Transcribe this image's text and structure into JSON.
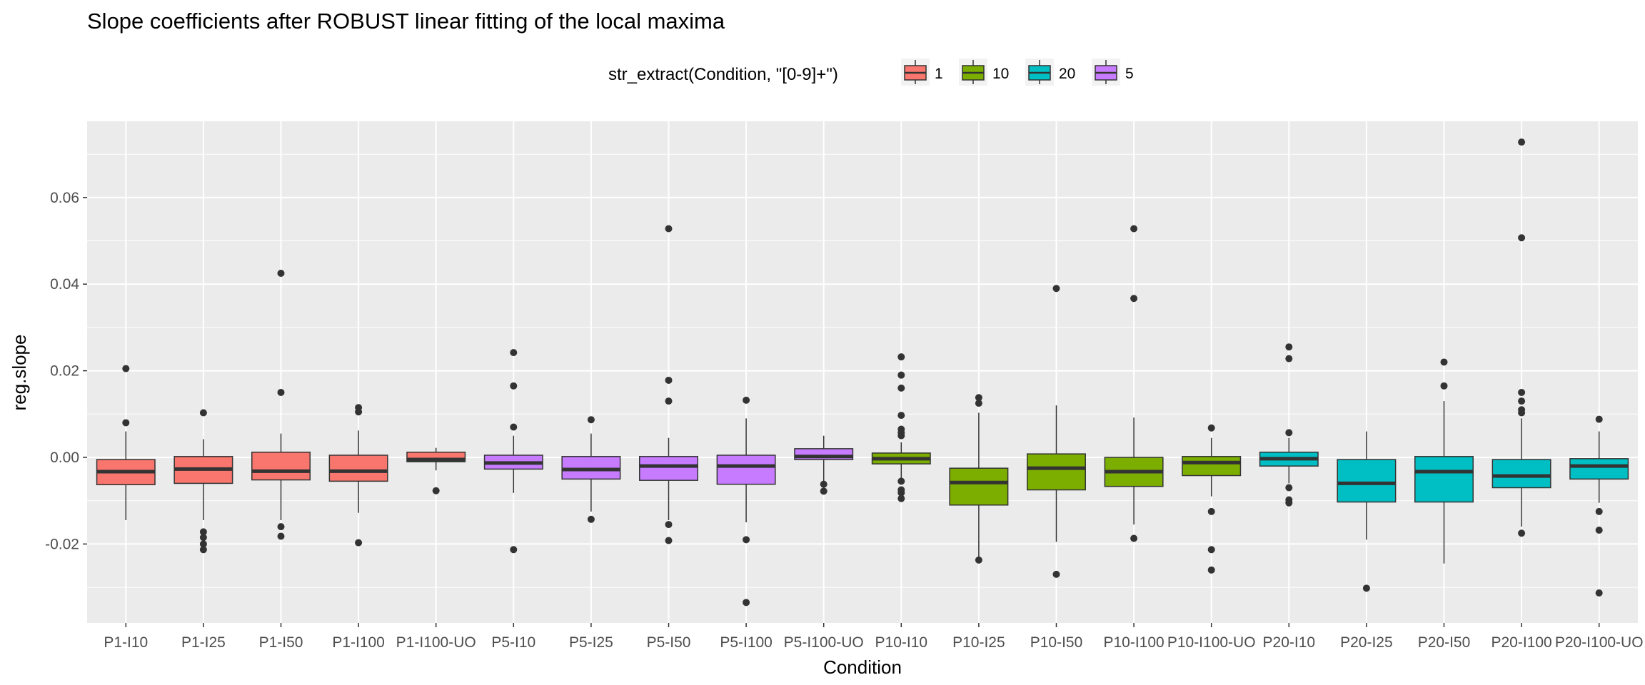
{
  "chart_data": {
    "type": "box",
    "title": "Slope coefficients after ROBUST linear fitting of the local maxima",
    "xlabel": "Condition",
    "ylabel": "reg.slope",
    "ylim": [
      -0.038,
      0.078
    ],
    "y_ticks": [
      -0.02,
      0.0,
      0.02,
      0.04,
      0.06
    ],
    "y_tick_labels": [
      "-0.02",
      "0.00",
      "0.02",
      "0.04",
      "0.06"
    ],
    "grid": true,
    "legend": {
      "title": "str_extract(Condition, \"[0-9]+\")",
      "position": "top",
      "entries": [
        {
          "label": "1",
          "color": "#F8766D"
        },
        {
          "label": "10",
          "color": "#7CAE00"
        },
        {
          "label": "20",
          "color": "#00BFC4"
        },
        {
          "label": "5",
          "color": "#C77CFF"
        }
      ]
    },
    "boxes": [
      {
        "category": "P1-I10",
        "group": "1",
        "whisker_low": -0.0145,
        "q1": -0.0063,
        "median": -0.0033,
        "q3": -0.0005,
        "whisker_high": 0.006,
        "outliers": [
          0.0205,
          0.008
        ]
      },
      {
        "category": "P1-I25",
        "group": "1",
        "whisker_low": -0.0145,
        "q1": -0.006,
        "median": -0.0027,
        "q3": 0.0002,
        "whisker_high": 0.0042,
        "outliers": [
          0.0103,
          -0.0172,
          -0.0185,
          -0.02,
          -0.0213
        ]
      },
      {
        "category": "P1-I50",
        "group": "1",
        "whisker_low": -0.0145,
        "q1": -0.0052,
        "median": -0.0032,
        "q3": 0.0012,
        "whisker_high": 0.0055,
        "outliers": [
          0.0425,
          0.015,
          -0.016,
          -0.0182
        ]
      },
      {
        "category": "P1-I100",
        "group": "1",
        "whisker_low": -0.0128,
        "q1": -0.0055,
        "median": -0.0032,
        "q3": 0.0005,
        "whisker_high": 0.0062,
        "outliers": [
          0.0115,
          0.0105,
          -0.0197
        ]
      },
      {
        "category": "P1-I100-UO",
        "group": "1",
        "whisker_low": -0.003,
        "q1": -0.001,
        "median": -0.0005,
        "q3": 0.0012,
        "whisker_high": 0.0022,
        "outliers": [
          -0.0077
        ]
      },
      {
        "category": "P5-I10",
        "group": "5",
        "whisker_low": -0.0082,
        "q1": -0.0027,
        "median": -0.0013,
        "q3": 0.0005,
        "whisker_high": 0.005,
        "outliers": [
          0.0242,
          0.0165,
          0.007,
          -0.0213
        ]
      },
      {
        "category": "P5-I25",
        "group": "5",
        "whisker_low": -0.0125,
        "q1": -0.005,
        "median": -0.0028,
        "q3": 0.0002,
        "whisker_high": 0.0055,
        "outliers": [
          0.0087,
          -0.0143
        ]
      },
      {
        "category": "P5-I50",
        "group": "5",
        "whisker_low": -0.0145,
        "q1": -0.0053,
        "median": -0.002,
        "q3": 0.0002,
        "whisker_high": 0.0045,
        "outliers": [
          0.0528,
          0.0178,
          0.013,
          -0.0155,
          -0.0192
        ]
      },
      {
        "category": "P5-I100",
        "group": "5",
        "whisker_low": -0.015,
        "q1": -0.0062,
        "median": -0.002,
        "q3": 0.0005,
        "whisker_high": 0.009,
        "outliers": [
          0.0132,
          -0.019,
          -0.0335
        ]
      },
      {
        "category": "P5-I100-UO",
        "group": "5",
        "whisker_low": -0.0055,
        "q1": -0.0005,
        "median": 0.0002,
        "q3": 0.002,
        "whisker_high": 0.005,
        "outliers": [
          -0.0062,
          -0.0078
        ]
      },
      {
        "category": "P10-I10",
        "group": "10",
        "whisker_low": -0.005,
        "q1": -0.0015,
        "median": -0.0003,
        "q3": 0.001,
        "whisker_high": 0.0035,
        "outliers": [
          0.0232,
          0.019,
          0.016,
          0.0097,
          0.0065,
          0.0057,
          0.005,
          -0.0055,
          -0.0075,
          -0.0082,
          -0.0095
        ]
      },
      {
        "category": "P10-I25",
        "group": "10",
        "whisker_low": -0.0233,
        "q1": -0.011,
        "median": -0.0058,
        "q3": -0.0025,
        "whisker_high": 0.0103,
        "outliers": [
          0.0138,
          0.0125,
          -0.0237
        ]
      },
      {
        "category": "P10-I50",
        "group": "10",
        "whisker_low": -0.0195,
        "q1": -0.0075,
        "median": -0.0025,
        "q3": 0.0008,
        "whisker_high": 0.012,
        "outliers": [
          0.039,
          -0.027
        ]
      },
      {
        "category": "P10-I100",
        "group": "10",
        "whisker_low": -0.0155,
        "q1": -0.0067,
        "median": -0.0033,
        "q3": 0.0,
        "whisker_high": 0.0092,
        "outliers": [
          0.0528,
          0.0367,
          -0.0187
        ]
      },
      {
        "category": "P10-I100-UO",
        "group": "10",
        "whisker_low": -0.009,
        "q1": -0.0042,
        "median": -0.0012,
        "q3": 0.0002,
        "whisker_high": 0.0045,
        "outliers": [
          0.0068,
          -0.0125,
          -0.0213,
          -0.026
        ]
      },
      {
        "category": "P20-I10",
        "group": "20",
        "whisker_low": -0.006,
        "q1": -0.002,
        "median": -0.0003,
        "q3": 0.0012,
        "whisker_high": 0.0045,
        "outliers": [
          0.0255,
          0.0228,
          0.0057,
          -0.007,
          -0.0098,
          -0.0105
        ]
      },
      {
        "category": "P20-I25",
        "group": "20",
        "whisker_low": -0.019,
        "q1": -0.0103,
        "median": -0.006,
        "q3": -0.0005,
        "whisker_high": 0.006,
        "outliers": [
          -0.0302
        ]
      },
      {
        "category": "P20-I50",
        "group": "20",
        "whisker_low": -0.0245,
        "q1": -0.0103,
        "median": -0.0033,
        "q3": 0.0002,
        "whisker_high": 0.013,
        "outliers": [
          0.022,
          0.0165
        ]
      },
      {
        "category": "P20-I100",
        "group": "20",
        "whisker_low": -0.016,
        "q1": -0.007,
        "median": -0.0043,
        "q3": -0.0005,
        "whisker_high": 0.009,
        "outliers": [
          0.0728,
          0.0507,
          0.015,
          0.013,
          0.011,
          0.0103,
          -0.0175
        ]
      },
      {
        "category": "P20-I100-UO",
        "group": "20",
        "whisker_low": -0.0105,
        "q1": -0.005,
        "median": -0.002,
        "q3": -0.0003,
        "whisker_high": 0.006,
        "outliers": [
          0.0088,
          -0.0125,
          -0.0168,
          -0.0313
        ]
      }
    ]
  }
}
